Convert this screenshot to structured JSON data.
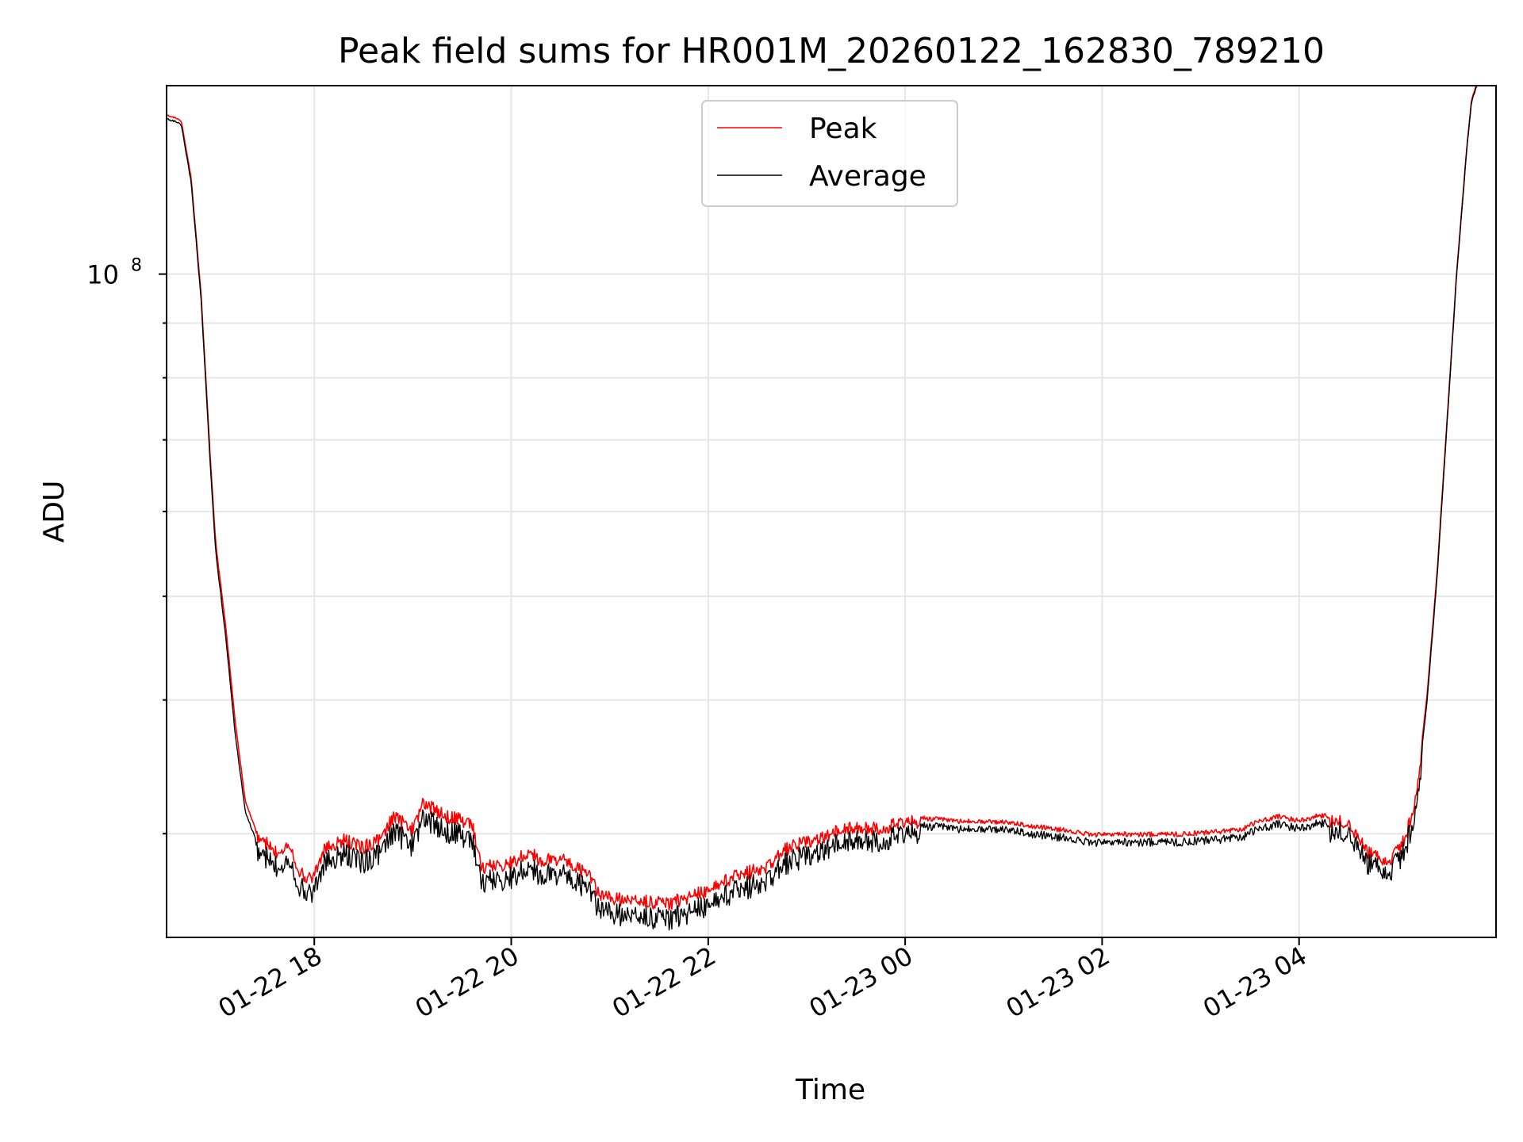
{
  "chart_data": {
    "type": "line",
    "title": "Peak field sums for HR001M_20260122_162830_789210",
    "xlabel": "Time",
    "ylabel": "ADU",
    "yscale": "log",
    "xlim": [
      16.5,
      30.0
    ],
    "ylim": [
      24000000,
      150000000
    ],
    "grid": true,
    "legend": {
      "placement": "upper-center",
      "entries": [
        {
          "name": "Peak",
          "color": "#ff0000"
        },
        {
          "name": "Average",
          "color": "#000000"
        }
      ]
    },
    "x_ticks": [
      {
        "value": 18,
        "label": "01-22 18"
      },
      {
        "value": 20,
        "label": "01-22 20"
      },
      {
        "value": 22,
        "label": "01-22 22"
      },
      {
        "value": 24,
        "label": "01-23 00"
      },
      {
        "value": 26,
        "label": "01-23 02"
      },
      {
        "value": 28,
        "label": "01-23 04"
      }
    ],
    "y_major_tick": {
      "value": 100000000,
      "base": "10",
      "exp": "8"
    },
    "y_minor_ticks": [
      30000000,
      40000000,
      50000000,
      60000000,
      70000000,
      80000000,
      90000000
    ],
    "series": [
      {
        "name": "Average",
        "color": "#000000",
        "x": [
          16.5,
          16.6,
          16.65,
          16.75,
          16.85,
          16.95,
          17.0,
          17.1,
          17.2,
          17.3,
          17.4,
          17.55,
          17.6,
          17.75,
          17.8,
          17.9,
          18.0,
          18.1,
          18.3,
          18.5,
          18.7,
          18.8,
          19.0,
          19.1,
          19.3,
          19.4,
          19.6,
          19.7,
          20.0,
          20.2,
          20.3,
          20.5,
          20.8,
          20.9,
          21.0,
          21.2,
          21.4,
          21.6,
          21.8,
          22.0,
          22.2,
          22.4,
          22.6,
          22.8,
          23.0,
          23.2,
          23.4,
          23.6,
          23.8,
          24.0,
          24.5,
          25.0,
          25.5,
          25.9,
          26.2,
          26.6,
          27.0,
          27.4,
          27.6,
          27.8,
          28.0,
          28.2,
          28.4,
          28.5,
          28.7,
          28.85,
          28.95,
          29.05,
          29.1,
          29.2,
          29.3,
          29.4,
          29.5,
          29.6,
          29.7,
          29.75,
          29.8,
          29.85,
          29.88
        ],
        "y": [
          140000000,
          139000000,
          138000000,
          122000000,
          95000000,
          65000000,
          55000000,
          46000000,
          37000000,
          31500000,
          29800000,
          29000000,
          28600000,
          29300000,
          28200000,
          27000000,
          27300000,
          28800000,
          29400000,
          29000000,
          29600000,
          30900000,
          30000000,
          31800000,
          31100000,
          30800000,
          30500000,
          27700000,
          28000000,
          28700000,
          28100000,
          28300000,
          27200000,
          26000000,
          25900000,
          25800000,
          25700000,
          25600000,
          26000000,
          26300000,
          27000000,
          27400000,
          27700000,
          28900000,
          29300000,
          29600000,
          30400000,
          30300000,
          30400000,
          30900000,
          30600000,
          30500000,
          30100000,
          29700000,
          29750000,
          29700000,
          29800000,
          30000000,
          30600000,
          30900000,
          30600000,
          30950000,
          30900000,
          30600000,
          28900000,
          28300000,
          28500000,
          29400000,
          30200000,
          33000000,
          40000000,
          52000000,
          72000000,
          100000000,
          130000000,
          145000000,
          150000000,
          152000000,
          152000000
        ]
      },
      {
        "name": "Peak",
        "color": "#ff0000",
        "x": [
          16.5,
          16.6,
          16.65,
          16.75,
          16.85,
          16.95,
          17.0,
          17.1,
          17.2,
          17.3,
          17.4,
          17.55,
          17.6,
          17.75,
          17.8,
          17.9,
          18.0,
          18.1,
          18.3,
          18.5,
          18.7,
          18.8,
          19.0,
          19.1,
          19.3,
          19.4,
          19.6,
          19.7,
          20.0,
          20.2,
          20.3,
          20.5,
          20.8,
          20.9,
          21.0,
          21.2,
          21.4,
          21.6,
          21.8,
          22.0,
          22.2,
          22.4,
          22.6,
          22.8,
          23.0,
          23.2,
          23.4,
          23.6,
          23.8,
          24.0,
          24.5,
          25.0,
          25.5,
          25.9,
          26.2,
          26.6,
          27.0,
          27.4,
          27.6,
          27.8,
          28.0,
          28.2,
          28.4,
          28.5,
          28.7,
          28.85,
          28.95,
          29.05,
          29.1,
          29.2,
          29.3,
          29.4,
          29.5,
          29.6,
          29.7,
          29.75,
          29.8,
          29.85,
          29.88
        ],
        "y": [
          141000000,
          140000000,
          139000000,
          123000000,
          96000000,
          66000000,
          56000000,
          47000000,
          38000000,
          32200000,
          30400000,
          29600000,
          29200000,
          29900000,
          28800000,
          27600000,
          27900000,
          29400000,
          30000000,
          29600000,
          30200000,
          31600000,
          30700000,
          32500000,
          31800000,
          31500000,
          31200000,
          28300000,
          28600000,
          29300000,
          28700000,
          28900000,
          27800000,
          26600000,
          26500000,
          26400000,
          26300000,
          26200000,
          26600000,
          26900000,
          27600000,
          28000000,
          28300000,
          29500000,
          29900000,
          30200000,
          30900000,
          30800000,
          30900000,
          31300000,
          31000000,
          30900000,
          30500000,
          30100000,
          30150000,
          30100000,
          30200000,
          30400000,
          31000000,
          31300000,
          31000000,
          31350000,
          31300000,
          31000000,
          29300000,
          28700000,
          28900000,
          29800000,
          30600000,
          33500000,
          40500000,
          52500000,
          72500000,
          100500000,
          130500000,
          145500000,
          150500000,
          152500000,
          152500000
        ]
      }
    ]
  }
}
